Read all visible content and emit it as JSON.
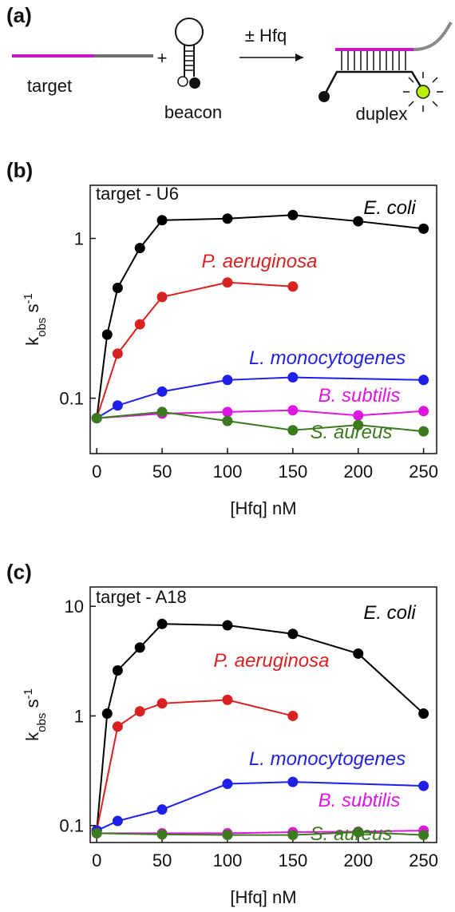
{
  "panel_a": {
    "label": "(a)",
    "target": "target",
    "plus": "+",
    "beacon": "beacon",
    "arrow": "± Hfq",
    "duplex": "duplex"
  },
  "chart_data": [
    {
      "type": "line",
      "panel_label": "(b)",
      "annotation": "target - U6",
      "ylabel": [
        "k",
        "obs",
        " s",
        "-1"
      ],
      "xlabel": "[Hfq] nM",
      "xlim": [
        -5,
        260
      ],
      "xticks": [
        0,
        50,
        100,
        150,
        200,
        250
      ],
      "ylim": [
        0.045,
        2.15
      ],
      "yticks": [
        0.1,
        1
      ],
      "log_y": true,
      "series": [
        {
          "name": "E. coli",
          "color": "#000000",
          "x": [
            0,
            8,
            16,
            33,
            50,
            100,
            150,
            200,
            250
          ],
          "values": [
            0.075,
            0.25,
            0.49,
            0.87,
            1.3,
            1.33,
            1.4,
            1.28,
            1.15
          ]
        },
        {
          "name": "P. aeruginosa",
          "color": "#d92120",
          "x": [
            0,
            16,
            33,
            50,
            100,
            150
          ],
          "values": [
            0.075,
            0.19,
            0.29,
            0.43,
            0.53,
            0.5
          ]
        },
        {
          "name": "L. monocytogenes",
          "color": "#1f1fe8",
          "x": [
            0,
            16,
            50,
            100,
            150,
            250
          ],
          "values": [
            0.075,
            0.09,
            0.11,
            0.13,
            0.135,
            0.13
          ]
        },
        {
          "name": "B. subtilis",
          "color": "#e015e0",
          "x": [
            0,
            50,
            100,
            150,
            200,
            250
          ],
          "values": [
            0.075,
            0.08,
            0.082,
            0.084,
            0.078,
            0.083
          ]
        },
        {
          "name": "S. aureus",
          "color": "#3b7a1e",
          "x": [
            0,
            50,
            100,
            150,
            200,
            250
          ],
          "values": [
            0.075,
            0.082,
            0.072,
            0.063,
            0.068,
            0.062
          ]
        }
      ]
    },
    {
      "type": "line",
      "panel_label": "(c)",
      "annotation": "target - A18",
      "ylabel": [
        "k",
        "obs",
        " s",
        "-1"
      ],
      "xlabel": "[Hfq] nM",
      "xlim": [
        -5,
        260
      ],
      "xticks": [
        0,
        50,
        100,
        150,
        200,
        250
      ],
      "ylim": [
        0.07,
        15
      ],
      "yticks": [
        0.1,
        1,
        10
      ],
      "log_y": true,
      "series": [
        {
          "name": "E. coli",
          "color": "#000000",
          "x": [
            0,
            8,
            16,
            33,
            50,
            100,
            150,
            200,
            250
          ],
          "values": [
            0.09,
            1.05,
            2.6,
            4.2,
            6.9,
            6.7,
            5.6,
            3.7,
            1.05
          ]
        },
        {
          "name": "P. aeruginosa",
          "color": "#d92120",
          "x": [
            0,
            16,
            33,
            50,
            100,
            150
          ],
          "values": [
            0.09,
            0.8,
            1.1,
            1.3,
            1.4,
            1.0
          ]
        },
        {
          "name": "L. monocytogenes",
          "color": "#1f1fe8",
          "x": [
            0,
            16,
            50,
            100,
            150,
            250
          ],
          "values": [
            0.09,
            0.11,
            0.14,
            0.24,
            0.25,
            0.23
          ]
        },
        {
          "name": "B. subtilis",
          "color": "#e015e0",
          "x": [
            0,
            50,
            100,
            150,
            200,
            250
          ],
          "values": [
            0.085,
            0.085,
            0.085,
            0.087,
            0.088,
            0.09
          ]
        },
        {
          "name": "S. aureus",
          "color": "#3b7a1e",
          "x": [
            0,
            50,
            100,
            150,
            200,
            250
          ],
          "values": [
            0.085,
            0.083,
            0.082,
            0.082,
            0.087,
            0.082
          ]
        }
      ]
    }
  ]
}
